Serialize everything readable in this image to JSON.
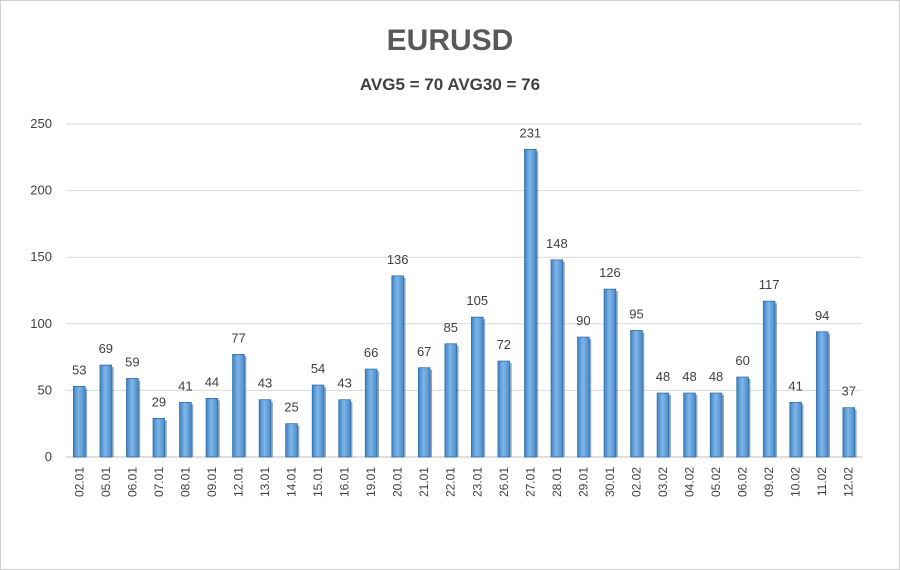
{
  "chart_data": {
    "type": "bar",
    "title": "EURUSD",
    "subtitle": "AVG5 = 70 AVG30 = 76",
    "xlabel": "",
    "ylabel": "",
    "ylim": [
      0,
      250
    ],
    "yticks": [
      0,
      50,
      100,
      150,
      200,
      250
    ],
    "grid": true,
    "legend": "none",
    "bar_color": "#5b9bd5",
    "bar_edge_color": "#2f6ea6",
    "categories": [
      "02.01",
      "05.01",
      "06.01",
      "07.01",
      "08.01",
      "09.01",
      "12.01",
      "13.01",
      "14.01",
      "15.01",
      "16.01",
      "19.01",
      "20.01",
      "21.01",
      "22.01",
      "23.01",
      "26.01",
      "27.01",
      "28.01",
      "29.01",
      "30.01",
      "02.02",
      "03.02",
      "04.02",
      "05.02",
      "06.02",
      "09.02",
      "10.02",
      "11.02",
      "12.02"
    ],
    "values": [
      53,
      69,
      59,
      29,
      41,
      44,
      77,
      43,
      25,
      54,
      43,
      66,
      136,
      67,
      85,
      105,
      72,
      231,
      148,
      90,
      126,
      95,
      48,
      48,
      48,
      60,
      117,
      41,
      94,
      37
    ]
  }
}
